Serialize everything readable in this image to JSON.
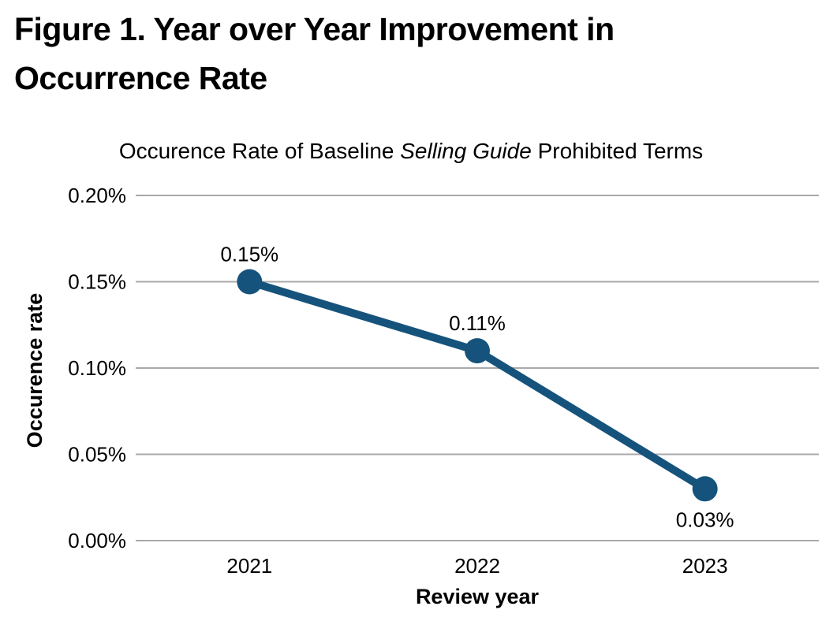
{
  "figure": {
    "title_line1": "Figure 1. Year over Year Improvement in",
    "title_line2": "Occurrence Rate"
  },
  "chart_data": {
    "type": "line",
    "title": "Occurence Rate of Baseline Selling Guide Prohibited Terms",
    "title_parts": {
      "pre": "Occurence Rate of Baseline ",
      "italic": "Selling Guide",
      "post": " Prohibited Terms"
    },
    "xlabel": "Review year",
    "ylabel": "Occurence rate",
    "categories": [
      "2021",
      "2022",
      "2023"
    ],
    "series": [
      {
        "name": "Occurence rate",
        "values": [
          0.15,
          0.11,
          0.03
        ]
      }
    ],
    "unit": "%",
    "data_labels": [
      "0.15%",
      "0.11%",
      "0.03%"
    ],
    "data_label_positions": [
      "above",
      "above",
      "below"
    ],
    "yticks": [
      {
        "label": "0.20%",
        "value": 0.2
      },
      {
        "label": "0.15%",
        "value": 0.15
      },
      {
        "label": "0.10%",
        "value": 0.1
      },
      {
        "label": "0.05%",
        "value": 0.05
      },
      {
        "label": "0.00%",
        "value": 0.0
      }
    ],
    "ylim": [
      0.0,
      0.2
    ],
    "grid": true,
    "legend": "none",
    "colors": {
      "line": "#16537C",
      "marker": "#16537C",
      "grid": "#A9A9A9",
      "text": "#000000",
      "background": "#FFFFFF"
    }
  }
}
